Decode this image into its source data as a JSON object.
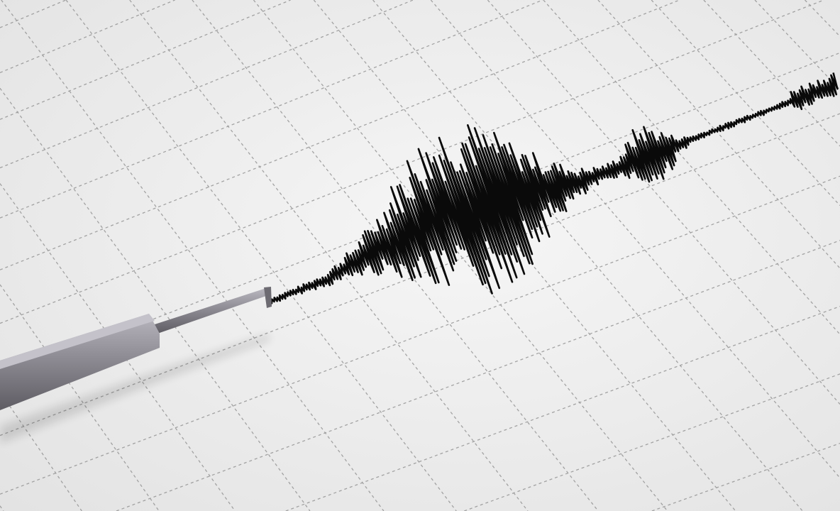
{
  "scene": {
    "subject": "seismograph-trace",
    "colors": {
      "paper": "#f1f1f1",
      "paper_shade": "#e4e4e4",
      "grid": "#8a8a8a",
      "trace": "#0a0a0a",
      "pen_body": "#8e8c94",
      "pen_highlight": "#b9b7bf",
      "pen_shadow": "#5e5c63"
    },
    "icons": [
      "seismograph-pen-icon"
    ]
  }
}
